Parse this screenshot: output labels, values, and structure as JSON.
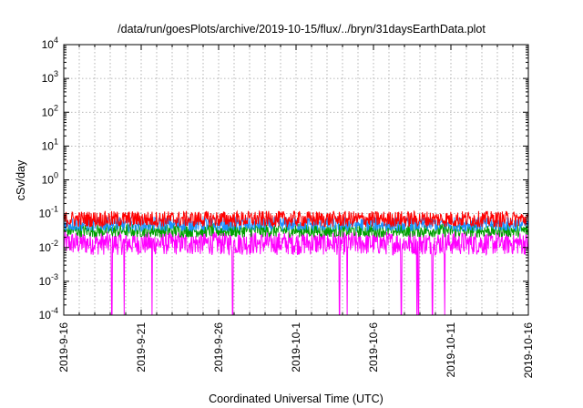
{
  "chart_data": {
    "type": "line",
    "title": "/data/run/goesPlots/archive/2019-10-15/flux/../bryn/31daysEarthData.plot",
    "xlabel": "Coordinated Universal Time (UTC)",
    "ylabel": "cSv/day",
    "yscale": "log",
    "ylim": [
      0.0001,
      10000
    ],
    "xlim": [
      "2019-09-16",
      "2019-10-16"
    ],
    "grid": true,
    "ytick_labels": [
      {
        "base": "10",
        "exp": "-4"
      },
      {
        "base": "10",
        "exp": "-3"
      },
      {
        "base": "10",
        "exp": "-2"
      },
      {
        "base": "10",
        "exp": "-1"
      },
      {
        "base": "10",
        "exp": "0"
      },
      {
        "base": "10",
        "exp": "1"
      },
      {
        "base": "10",
        "exp": "2"
      },
      {
        "base": "10",
        "exp": "3"
      },
      {
        "base": "10",
        "exp": "4"
      }
    ],
    "xtick_labels": [
      "2019-9-16",
      "2019-9-21",
      "2019-9-26",
      "2019-10-1",
      "2019-10-6",
      "2019-10-11",
      "2019-10-16"
    ],
    "series": [
      {
        "color": "#ff0000",
        "typical_range": [
          0.04,
          0.12
        ]
      },
      {
        "color": "#1e90ff",
        "typical_range": [
          0.03,
          0.08
        ]
      },
      {
        "color": "#00a000",
        "typical_range": [
          0.02,
          0.05
        ]
      },
      {
        "color": "#ff00ff",
        "typical_range": [
          0.006,
          0.03
        ],
        "dropouts_day": [
          3.1,
          3.9,
          5.7,
          10.9,
          17.8,
          18.3,
          21.8,
          22.8,
          22.9,
          23.8,
          24.6
        ]
      }
    ]
  }
}
